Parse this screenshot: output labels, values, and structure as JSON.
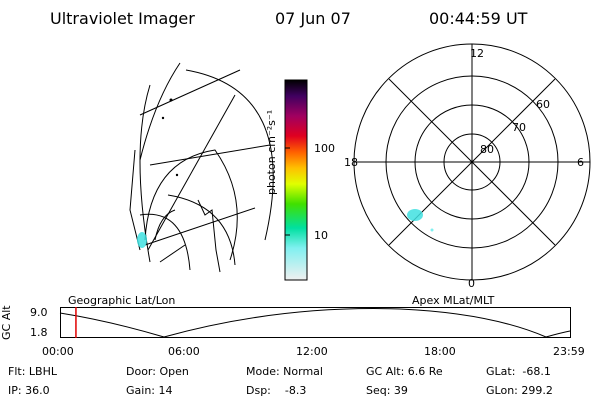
{
  "header": {
    "instrument": "Ultraviolet Imager",
    "date": "07 Jun 07",
    "time": "00:44:59 UT"
  },
  "colorbar": {
    "unit_label": "photon cm⁻²s⁻¹",
    "ticks": [
      "100",
      "10"
    ],
    "scale": "log"
  },
  "polar_plot": {
    "mlt_labels": {
      "top": "12",
      "left": "18",
      "right": "6",
      "bottom": "0"
    },
    "lat_labels": [
      "60",
      "70",
      "80"
    ]
  },
  "timeline": {
    "left_title": "Geographic Lat/Lon",
    "right_title": "Apex MLat/MLT",
    "y_axis_label": "GC Alt",
    "y_ticks": [
      "9.0",
      "1.8"
    ],
    "x_ticks": [
      "00:00",
      "06:00",
      "12:00",
      "18:00",
      "23:59"
    ],
    "current_time_marker_hours": 0.75
  },
  "footer": {
    "flt": "Flt: LBHL",
    "ip": "IP: 36.0",
    "door": "Door: Open",
    "gain": "Gain: 14",
    "mode": "Mode: Normal",
    "dsp": "Dsp:    -8.3",
    "gcalt": "GC Alt: 6.6 Re",
    "seq": "Seq: 39",
    "glat": "GLat:  -68.1",
    "glon": "GLon: 299.2"
  },
  "colors": {
    "marker": "#e00000",
    "auroral_patch": "#40e0e0"
  }
}
